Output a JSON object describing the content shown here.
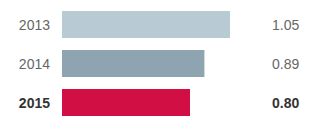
{
  "chart_data": {
    "type": "bar",
    "orientation": "horizontal",
    "categories": [
      "2013",
      "2014",
      "2015"
    ],
    "values": [
      1.05,
      0.89,
      0.8
    ],
    "value_labels": [
      "1.05",
      "0.89",
      "0.80"
    ],
    "colors": [
      "#b8cad4",
      "#8fa4b1",
      "#d20f45"
    ],
    "xlim": [
      0,
      1.2
    ],
    "grid": false,
    "tick_labels": "y",
    "data_labels": true
  }
}
